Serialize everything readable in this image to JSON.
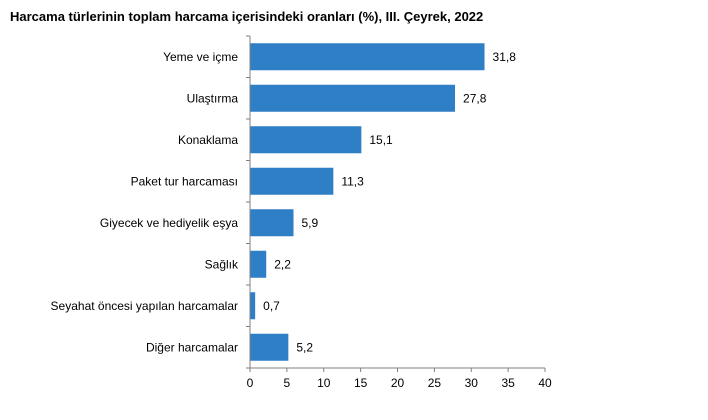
{
  "chart_data": {
    "type": "bar",
    "orientation": "horizontal",
    "title": "Harcama türlerinin toplam harcama içerisindeki oranları (%), III. Çeyrek, 2022",
    "categories": [
      "Yeme ve içme",
      "Ulaştırma",
      "Konaklama",
      "Paket tur harcaması",
      "Giyecek ve hediyelik eşya",
      "Sağlık",
      "Seyahat öncesi yapılan harcamalar",
      "Diğer harcamalar"
    ],
    "values": [
      31.8,
      27.8,
      15.1,
      11.3,
      5.9,
      2.2,
      0.7,
      5.2
    ],
    "value_labels": [
      "31,8",
      "27,8",
      "15,1",
      "11,3",
      "5,9",
      "2,2",
      "0,7",
      "5,2"
    ],
    "xlim": [
      0,
      40
    ],
    "xticks": [
      0,
      5,
      10,
      15,
      20,
      25,
      30,
      35,
      40
    ],
    "xlabel": "",
    "ylabel": "",
    "grid": false,
    "legend": "none",
    "bar_color": "#2F7FC7"
  }
}
